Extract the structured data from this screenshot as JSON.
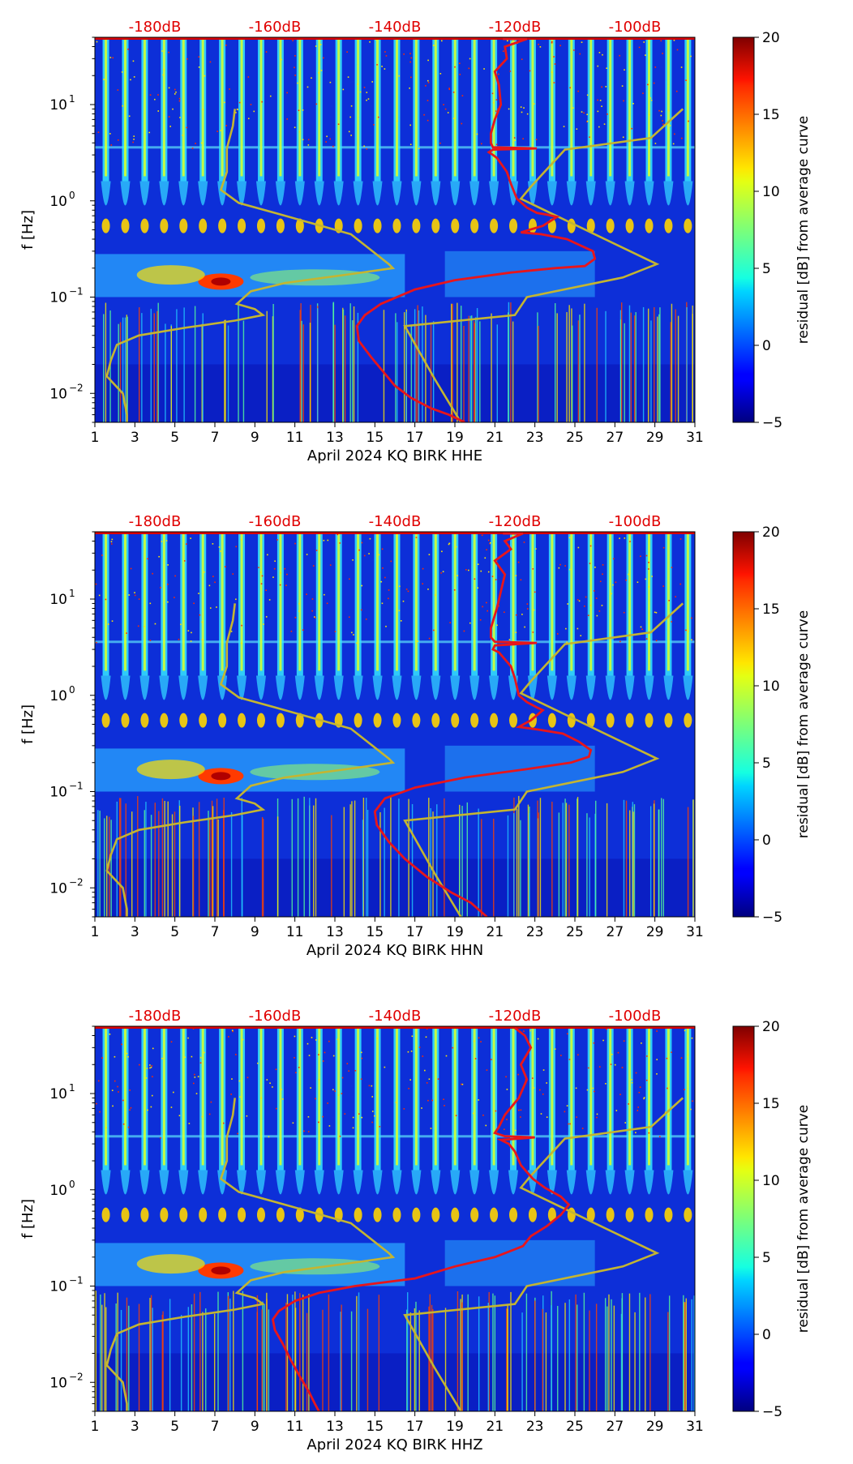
{
  "chart_data": {
    "type": "heatmap",
    "colorbar": {
      "label": "residual [dB] from average curve",
      "range": [
        -5,
        20
      ],
      "ticks": [
        "−5",
        "0",
        "5",
        "10",
        "15",
        "20"
      ],
      "tick_values": [
        -5,
        0,
        5,
        10,
        15,
        20
      ],
      "colormap": "jet"
    },
    "ylabel": "f [Hz]",
    "ylim": [
      0.005,
      50
    ],
    "yscale": "log",
    "y_ticks": [
      {
        "value": 0.01,
        "exp": "−2"
      },
      {
        "value": 0.1,
        "exp": "−1"
      },
      {
        "value": 1,
        "exp": "0"
      },
      {
        "value": 10,
        "exp": "1"
      }
    ],
    "xlim": [
      1,
      31
    ],
    "x_ticks": [
      "1",
      "3",
      "5",
      "7",
      "9",
      "11",
      "13",
      "15",
      "17",
      "19",
      "21",
      "23",
      "25",
      "27",
      "29",
      "31"
    ],
    "x_tick_values": [
      1,
      3,
      5,
      7,
      9,
      11,
      13,
      15,
      17,
      19,
      21,
      23,
      25,
      27,
      29,
      31
    ],
    "top_ticks": [
      "-180dB",
      "-160dB",
      "-140dB",
      "-120dB",
      "-100dB"
    ],
    "top_tick_days": [
      4,
      10,
      16,
      22,
      28
    ],
    "top_tick_color": "#e00000",
    "line_colors": {
      "red": "#e8151b",
      "olive": "#c4b531"
    },
    "panels": [
      {
        "xlabel": "April 2024 KQ BIRK  HHE",
        "red_curve": [
          [
            21.4,
            48
          ],
          [
            22.6,
            48
          ],
          [
            21.5,
            40
          ],
          [
            21.6,
            30
          ],
          [
            21.0,
            22
          ],
          [
            21.2,
            16
          ],
          [
            21.3,
            10
          ],
          [
            21.0,
            7
          ],
          [
            20.8,
            5
          ],
          [
            20.8,
            4.0
          ],
          [
            20.9,
            3.6
          ],
          [
            23.1,
            3.5
          ],
          [
            20.9,
            3.4
          ],
          [
            20.7,
            3.2
          ],
          [
            20.9,
            3.0
          ],
          [
            21.1,
            2.8
          ],
          [
            21.6,
            2.0
          ],
          [
            21.8,
            1.5
          ],
          [
            22.1,
            1.05
          ],
          [
            22.6,
            0.85
          ],
          [
            23.1,
            0.75
          ],
          [
            23.6,
            0.72
          ],
          [
            24.1,
            0.68
          ],
          [
            23.4,
            0.55
          ],
          [
            22.3,
            0.47
          ],
          [
            23.3,
            0.45
          ],
          [
            24.6,
            0.4
          ],
          [
            25.2,
            0.35
          ],
          [
            25.9,
            0.3
          ],
          [
            26.0,
            0.25
          ],
          [
            25.5,
            0.21
          ],
          [
            24.0,
            0.2
          ],
          [
            21.8,
            0.18
          ],
          [
            19.0,
            0.15
          ],
          [
            17.0,
            0.12
          ],
          [
            15.3,
            0.085
          ],
          [
            14.5,
            0.065
          ],
          [
            14.1,
            0.05
          ],
          [
            14.2,
            0.035
          ],
          [
            14.8,
            0.024
          ],
          [
            15.5,
            0.016
          ],
          [
            16.0,
            0.012
          ],
          [
            16.8,
            0.009
          ],
          [
            17.8,
            0.007
          ],
          [
            18.7,
            0.006
          ],
          [
            19.5,
            0.005
          ]
        ],
        "olive_curve": [
          [
            8.0,
            9.0
          ],
          [
            7.9,
            6.0
          ],
          [
            7.6,
            3.5
          ],
          [
            7.6,
            2.0
          ],
          [
            7.3,
            1.3
          ],
          [
            8.2,
            0.95
          ],
          [
            10.0,
            0.75
          ],
          [
            13.8,
            0.45
          ],
          [
            15.7,
            0.22
          ],
          [
            15.9,
            0.2
          ],
          [
            13.5,
            0.17
          ],
          [
            10.5,
            0.14
          ],
          [
            8.8,
            0.115
          ],
          [
            8.1,
            0.085
          ],
          [
            9.0,
            0.075
          ],
          [
            9.4,
            0.065
          ],
          [
            8.0,
            0.057
          ],
          [
            5.5,
            0.048
          ],
          [
            3.2,
            0.04
          ],
          [
            2.1,
            0.032
          ],
          [
            1.8,
            0.022
          ],
          [
            1.6,
            0.015
          ],
          [
            2.4,
            0.01
          ],
          [
            2.6,
            0.006
          ],
          [
            2.6,
            0.005
          ]
        ],
        "olive_curve_2": [
          [
            19.3,
            0.005
          ],
          [
            18.0,
            0.014
          ],
          [
            16.5,
            0.05
          ],
          [
            22.0,
            0.065
          ],
          [
            22.6,
            0.1
          ],
          [
            27.4,
            0.16
          ],
          [
            29.1,
            0.22
          ],
          [
            22.3,
            1.05
          ],
          [
            22.8,
            1.4
          ],
          [
            24.5,
            3.4
          ],
          [
            28.8,
            4.5
          ],
          [
            30.4,
            9.0
          ]
        ]
      },
      {
        "xlabel": "April 2024 KQ BIRK  HHN",
        "red_curve": [
          [
            21.4,
            48
          ],
          [
            22.4,
            48
          ],
          [
            21.5,
            40
          ],
          [
            21.8,
            33
          ],
          [
            21.0,
            25
          ],
          [
            21.5,
            18
          ],
          [
            21.3,
            12
          ],
          [
            21.1,
            8
          ],
          [
            20.8,
            5
          ],
          [
            20.8,
            4.0
          ],
          [
            21.0,
            3.6
          ],
          [
            23.1,
            3.5
          ],
          [
            21.0,
            3.3
          ],
          [
            20.9,
            3.0
          ],
          [
            21.2,
            2.8
          ],
          [
            21.8,
            2.0
          ],
          [
            22.0,
            1.5
          ],
          [
            22.2,
            1.0
          ],
          [
            22.6,
            0.85
          ],
          [
            23.1,
            0.75
          ],
          [
            23.4,
            0.7
          ],
          [
            22.8,
            0.55
          ],
          [
            22.2,
            0.47
          ],
          [
            23.2,
            0.44
          ],
          [
            24.4,
            0.4
          ],
          [
            25.2,
            0.33
          ],
          [
            25.8,
            0.27
          ],
          [
            25.7,
            0.23
          ],
          [
            24.8,
            0.2
          ],
          [
            22.5,
            0.17
          ],
          [
            19.5,
            0.14
          ],
          [
            17.0,
            0.11
          ],
          [
            15.5,
            0.085
          ],
          [
            15.0,
            0.062
          ],
          [
            15.1,
            0.045
          ],
          [
            15.7,
            0.03
          ],
          [
            16.5,
            0.02
          ],
          [
            17.6,
            0.013
          ],
          [
            18.8,
            0.009
          ],
          [
            19.8,
            0.007
          ],
          [
            20.6,
            0.005
          ]
        ],
        "olive_curve": [
          [
            8.0,
            9.0
          ],
          [
            7.9,
            6.0
          ],
          [
            7.6,
            3.5
          ],
          [
            7.6,
            2.0
          ],
          [
            7.3,
            1.3
          ],
          [
            8.2,
            0.95
          ],
          [
            10.0,
            0.75
          ],
          [
            13.8,
            0.45
          ],
          [
            15.7,
            0.22
          ],
          [
            15.9,
            0.2
          ],
          [
            13.5,
            0.17
          ],
          [
            10.5,
            0.14
          ],
          [
            8.8,
            0.115
          ],
          [
            8.1,
            0.085
          ],
          [
            9.0,
            0.075
          ],
          [
            9.4,
            0.065
          ],
          [
            8.0,
            0.057
          ],
          [
            5.5,
            0.048
          ],
          [
            3.2,
            0.04
          ],
          [
            2.1,
            0.032
          ],
          [
            1.8,
            0.022
          ],
          [
            1.6,
            0.015
          ],
          [
            2.4,
            0.01
          ],
          [
            2.6,
            0.006
          ],
          [
            2.6,
            0.005
          ]
        ],
        "olive_curve_2": [
          [
            19.3,
            0.005
          ],
          [
            18.0,
            0.014
          ],
          [
            16.5,
            0.05
          ],
          [
            22.0,
            0.065
          ],
          [
            22.6,
            0.1
          ],
          [
            27.4,
            0.16
          ],
          [
            29.1,
            0.22
          ],
          [
            22.3,
            1.05
          ],
          [
            22.8,
            1.4
          ],
          [
            24.5,
            3.4
          ],
          [
            28.8,
            4.5
          ],
          [
            30.4,
            9.0
          ]
        ]
      },
      {
        "xlabel": "April 2024 KQ BIRK  HHZ",
        "red_curve": [
          [
            22.0,
            48
          ],
          [
            22.5,
            40
          ],
          [
            22.8,
            30
          ],
          [
            22.3,
            20
          ],
          [
            22.6,
            14
          ],
          [
            22.2,
            9
          ],
          [
            21.5,
            6
          ],
          [
            21.2,
            4.5
          ],
          [
            21.0,
            3.9
          ],
          [
            21.5,
            3.6
          ],
          [
            23.0,
            3.5
          ],
          [
            21.3,
            3.3
          ],
          [
            21.7,
            3.0
          ],
          [
            22.0,
            2.5
          ],
          [
            22.3,
            1.8
          ],
          [
            22.9,
            1.3
          ],
          [
            23.5,
            1.05
          ],
          [
            24.3,
            0.85
          ],
          [
            24.7,
            0.7
          ],
          [
            24.3,
            0.55
          ],
          [
            23.6,
            0.42
          ],
          [
            22.8,
            0.33
          ],
          [
            22.4,
            0.26
          ],
          [
            21.0,
            0.2
          ],
          [
            19.0,
            0.16
          ],
          [
            17.0,
            0.12
          ],
          [
            14.0,
            0.1
          ],
          [
            12.2,
            0.085
          ],
          [
            11.0,
            0.07
          ],
          [
            10.2,
            0.055
          ],
          [
            9.9,
            0.045
          ],
          [
            10.0,
            0.035
          ],
          [
            10.4,
            0.025
          ],
          [
            10.8,
            0.017
          ],
          [
            11.2,
            0.012
          ],
          [
            11.7,
            0.008
          ],
          [
            12.0,
            0.006
          ],
          [
            12.2,
            0.005
          ]
        ],
        "olive_curve": [
          [
            8.0,
            9.0
          ],
          [
            7.9,
            6.0
          ],
          [
            7.6,
            3.5
          ],
          [
            7.6,
            2.0
          ],
          [
            7.3,
            1.3
          ],
          [
            8.2,
            0.95
          ],
          [
            10.0,
            0.75
          ],
          [
            13.8,
            0.45
          ],
          [
            15.7,
            0.22
          ],
          [
            15.9,
            0.2
          ],
          [
            13.5,
            0.17
          ],
          [
            10.5,
            0.14
          ],
          [
            8.8,
            0.115
          ],
          [
            8.1,
            0.085
          ],
          [
            9.0,
            0.075
          ],
          [
            9.4,
            0.065
          ],
          [
            8.0,
            0.057
          ],
          [
            5.5,
            0.048
          ],
          [
            3.2,
            0.04
          ],
          [
            2.1,
            0.032
          ],
          [
            1.8,
            0.022
          ],
          [
            1.6,
            0.015
          ],
          [
            2.4,
            0.01
          ],
          [
            2.6,
            0.006
          ],
          [
            2.6,
            0.005
          ]
        ],
        "olive_curve_2": [
          [
            19.3,
            0.005
          ],
          [
            18.0,
            0.014
          ],
          [
            16.5,
            0.05
          ],
          [
            22.0,
            0.065
          ],
          [
            22.6,
            0.1
          ],
          [
            27.4,
            0.16
          ],
          [
            29.1,
            0.22
          ],
          [
            22.3,
            1.05
          ],
          [
            22.8,
            1.4
          ],
          [
            24.5,
            3.4
          ],
          [
            28.8,
            4.5
          ],
          [
            30.4,
            9.0
          ]
        ]
      }
    ]
  }
}
